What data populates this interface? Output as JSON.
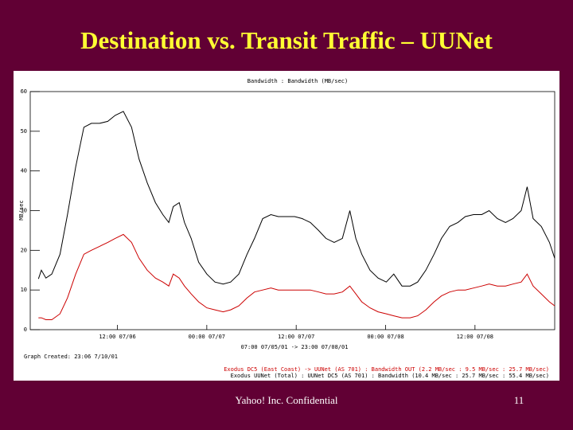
{
  "slide": {
    "title": "Destination vs. Transit Traffic – UUNet",
    "footer": "Yahoo! Inc. Confidential",
    "page_number": "11"
  },
  "chart_data": {
    "type": "line",
    "title": "Bandwidth : Bandwidth (MB/sec)",
    "y_label": "MB/sec",
    "x_label": "07:00 07/05/01 -> 23:00 07/08/01",
    "annotation": "Graph Created: 23:06 7/10/01",
    "x": [
      1.4,
      1.8,
      2.4,
      3.2,
      4.3,
      5.3,
      6.4,
      7.5,
      8.5,
      9.6,
      10.7,
      11.7,
      12.8,
      13.9,
      14.9,
      16.0,
      17.1,
      18.1,
      18.9,
      19.5,
      20.3,
      21.0,
      21.9,
      22.9,
      24.0,
      25.1,
      26.2,
      27.2,
      28.3,
      29.4,
      30.4,
      31.5,
      32.6,
      33.6,
      34.7,
      35.8,
      36.8,
      37.9,
      39.0,
      40.0,
      41.1,
      42.2,
      43.2,
      44.0,
      44.8,
      45.9,
      47.0,
      48.1,
      49.1,
      50.2,
      51.3,
      52.3,
      53.4,
      54.5,
      55.5,
      56.6,
      57.7,
      58.7,
      59.8,
      60.9,
      61.9,
      63.0,
      64.1,
      65.1,
      66.2,
      67.0,
      67.8,
      68.9,
      70.0,
      70.7
    ],
    "series": [
      {
        "name": "Exodus DC5 (East Coast) -> UUNet (AS 701) : Bandwidth OUT (2.2 MB/sec : 9.5 MB/sec : 25.7 MB/sec)",
        "color": "#cc0000",
        "values": [
          3,
          3,
          2.5,
          2.5,
          4,
          8,
          14,
          19,
          20,
          21,
          22,
          23,
          24,
          22,
          18,
          15,
          13,
          12,
          11,
          14,
          13,
          11,
          9,
          7,
          5.5,
          5,
          4.5,
          5,
          6,
          8,
          9.5,
          10,
          10.5,
          10,
          10,
          10,
          10,
          10,
          9.5,
          9,
          9,
          9.5,
          11,
          9,
          7,
          5.5,
          4.5,
          4,
          3.5,
          3,
          3,
          3.5,
          5,
          7,
          8.5,
          9.5,
          10,
          10,
          10.5,
          11,
          11.5,
          11,
          11,
          11.5,
          12,
          14,
          11,
          9,
          7,
          6
        ]
      },
      {
        "name": "Exodus UUNet (Total) : UUNet DC5 (AS 701) : Bandwidth (10.4 MB/sec : 25.7 MB/sec : 55.4 MB/sec)",
        "color": "#000000",
        "values": [
          12.8,
          15,
          13,
          14,
          19,
          29,
          41,
          51,
          52,
          52,
          52.5,
          54,
          55,
          51,
          43,
          37,
          32,
          29,
          27,
          31,
          32,
          27,
          23,
          17,
          14,
          12,
          11.5,
          12,
          14,
          19,
          23,
          28,
          29,
          28.5,
          28.5,
          28.5,
          28,
          27,
          25,
          23,
          22,
          23,
          30,
          23,
          19,
          15,
          13,
          12,
          14,
          11,
          11,
          12,
          15,
          19,
          23,
          26,
          27,
          28.5,
          29,
          29,
          30,
          28,
          27,
          28,
          30,
          36,
          28,
          26,
          22,
          18
        ]
      }
    ],
    "xlim": [
      0.3,
      70.7
    ],
    "xticks": [
      {
        "value": 12,
        "label": "12:00 07/06"
      },
      {
        "value": 24,
        "label": "00:00 07/07"
      },
      {
        "value": 36,
        "label": "12:00 07/07"
      },
      {
        "value": 48,
        "label": "00:00 07/08"
      },
      {
        "value": 60,
        "label": "12:00 07/08"
      }
    ],
    "ylim": [
      0,
      60
    ],
    "yticks": [
      0,
      10,
      20,
      30,
      40,
      50,
      60
    ],
    "grid": false
  }
}
